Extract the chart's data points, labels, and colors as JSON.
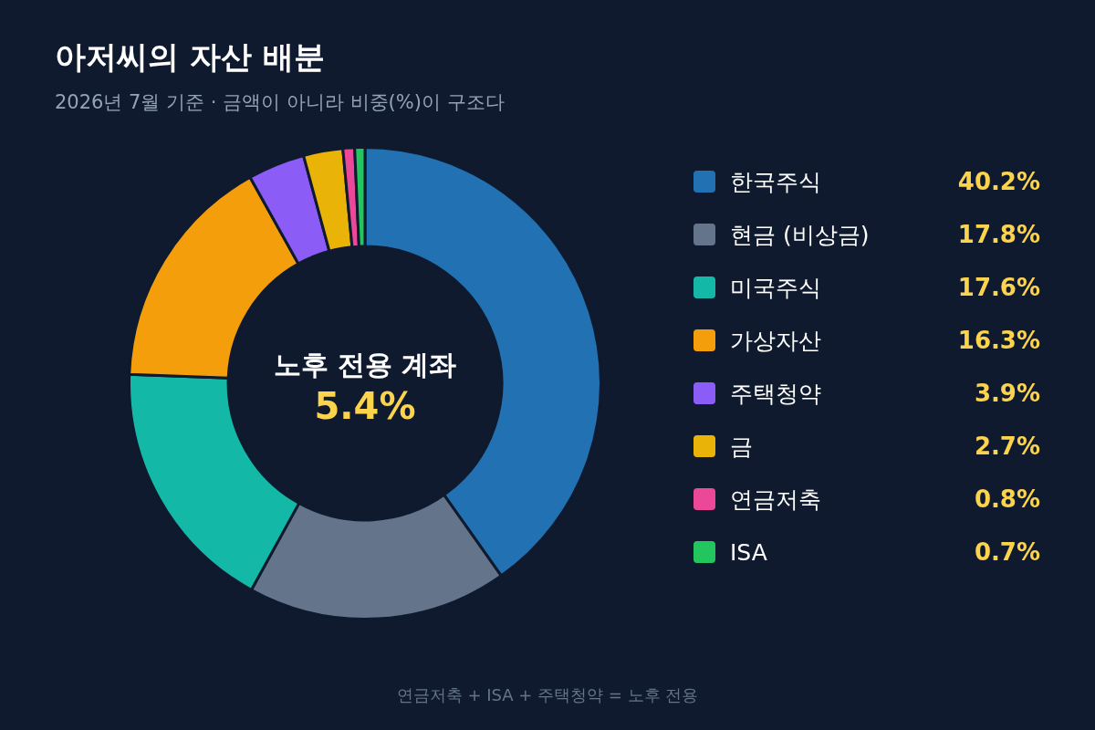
{
  "chart_data": {
    "type": "donut",
    "title": "아저씨의 자산 배분",
    "subtitle": "2026년 7월 기준 · 금액이 아니라 비중(%)이 구조다",
    "categories": [
      "한국주식",
      "현금 (비상금)",
      "미국주식",
      "가상자산",
      "주택청약",
      "금",
      "연금저축",
      "ISA"
    ],
    "values": [
      40.2,
      17.8,
      17.6,
      16.3,
      3.9,
      2.7,
      0.8,
      0.7
    ],
    "colors": [
      "#2271b3",
      "#64748b",
      "#14b8a6",
      "#f59e0b",
      "#8b5cf6",
      "#eab308",
      "#ec4899",
      "#22c55e"
    ],
    "value_labels": [
      "40.2%",
      "17.8%",
      "17.6%",
      "16.3%",
      "3.9%",
      "2.7%",
      "0.8%",
      "0.7%"
    ],
    "legend": "right",
    "annotations": [
      "노후 전용 계좌",
      "5.4%",
      "연금저축 + ISA + 주택청약 = 노후 전용"
    ]
  }
}
